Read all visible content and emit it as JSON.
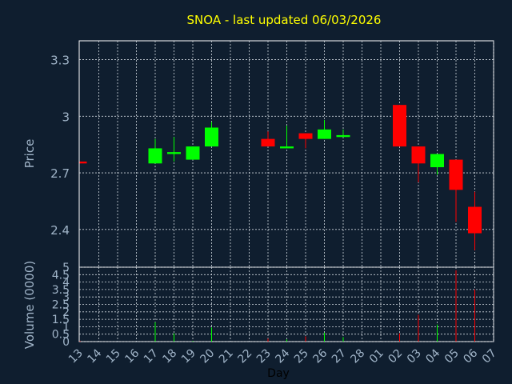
{
  "chart_data": {
    "type": "candlestick",
    "title": "SNOA - last updated 06/03/2026",
    "xlabel": "Day",
    "x_ticks": [
      "13",
      "14",
      "15",
      "16",
      "17",
      "18",
      "19",
      "20",
      "21",
      "22",
      "23",
      "24",
      "25",
      "26",
      "27",
      "28",
      "01",
      "02",
      "03",
      "04",
      "05",
      "06",
      "07"
    ],
    "price_panel": {
      "ylabel": "Price",
      "ylim": [
        2.2,
        3.4
      ],
      "y_ticks": [
        "2.4",
        "2.7",
        "3",
        "3.3"
      ],
      "candles": [
        {
          "x": "13",
          "open": 2.76,
          "close": 2.75,
          "high": 2.76,
          "low": 2.75,
          "color": "#ff0000"
        },
        {
          "x": "17",
          "open": 2.75,
          "close": 2.83,
          "high": 2.88,
          "low": 2.75,
          "color": "#00ff00"
        },
        {
          "x": "18",
          "open": 2.8,
          "close": 2.81,
          "high": 2.89,
          "low": 2.76,
          "color": "#00ff00"
        },
        {
          "x": "19",
          "open": 2.77,
          "close": 2.84,
          "high": 2.84,
          "low": 2.77,
          "color": "#00ff00"
        },
        {
          "x": "20",
          "open": 2.84,
          "close": 2.94,
          "high": 2.97,
          "low": 2.84,
          "color": "#00ff00"
        },
        {
          "x": "23",
          "open": 2.88,
          "close": 2.84,
          "high": 2.92,
          "low": 2.84,
          "color": "#ff0000"
        },
        {
          "x": "24",
          "open": 2.83,
          "close": 2.84,
          "high": 2.95,
          "low": 2.83,
          "color": "#00ff00"
        },
        {
          "x": "25",
          "open": 2.91,
          "close": 2.88,
          "high": 2.91,
          "low": 2.83,
          "color": "#ff0000"
        },
        {
          "x": "26",
          "open": 2.88,
          "close": 2.93,
          "high": 2.98,
          "low": 2.88,
          "color": "#00ff00"
        },
        {
          "x": "27",
          "open": 2.89,
          "close": 2.9,
          "high": 2.93,
          "low": 2.89,
          "color": "#00ff00"
        },
        {
          "x": "02",
          "open": 3.06,
          "close": 2.84,
          "high": 3.06,
          "low": 2.84,
          "color": "#ff0000"
        },
        {
          "x": "03",
          "open": 2.84,
          "close": 2.75,
          "high": 2.84,
          "low": 2.65,
          "color": "#ff0000"
        },
        {
          "x": "04",
          "open": 2.73,
          "close": 2.8,
          "high": 2.8,
          "low": 2.69,
          "color": "#00ff00"
        },
        {
          "x": "05",
          "open": 2.77,
          "close": 2.61,
          "high": 2.77,
          "low": 2.44,
          "color": "#ff0000"
        },
        {
          "x": "06",
          "open": 2.52,
          "close": 2.38,
          "high": 2.6,
          "low": 2.29,
          "color": "#ff0000"
        }
      ]
    },
    "volume_panel": {
      "ylabel": "Volume (0000)",
      "ylim": [
        0,
        5
      ],
      "y_ticks": [
        "0",
        "0.5",
        "1",
        "1.5",
        "2",
        "2.5",
        "3",
        "3.5",
        "4",
        "4.5",
        "5"
      ],
      "bars": [
        {
          "x": "13",
          "value": 0.05,
          "color": "#ff0000"
        },
        {
          "x": "17",
          "value": 1.3,
          "color": "#00ff00"
        },
        {
          "x": "18",
          "value": 0.55,
          "color": "#00ff00"
        },
        {
          "x": "19",
          "value": 0.05,
          "color": "#00ff00"
        },
        {
          "x": "20",
          "value": 0.95,
          "color": "#00ff00"
        },
        {
          "x": "23",
          "value": 0.2,
          "color": "#ff0000"
        },
        {
          "x": "24",
          "value": 0.15,
          "color": "#00ff00"
        },
        {
          "x": "25",
          "value": 0.35,
          "color": "#ff0000"
        },
        {
          "x": "26",
          "value": 0.6,
          "color": "#00ff00"
        },
        {
          "x": "27",
          "value": 0.3,
          "color": "#00ff00"
        },
        {
          "x": "02",
          "value": 0.55,
          "color": "#ff0000"
        },
        {
          "x": "03",
          "value": 1.8,
          "color": "#ff0000"
        },
        {
          "x": "04",
          "value": 1.15,
          "color": "#00ff00"
        },
        {
          "x": "05",
          "value": 4.8,
          "color": "#ff0000"
        },
        {
          "x": "06",
          "value": 3.5,
          "color": "#ff0000"
        }
      ]
    },
    "grid": true,
    "colors": {
      "background": "#0f1e2f",
      "axis": "#ffffff",
      "grid": "#cfd6de",
      "label": "#a0b4c8",
      "title": "#ffff00",
      "up": "#00ff00",
      "down": "#ff0000"
    }
  }
}
